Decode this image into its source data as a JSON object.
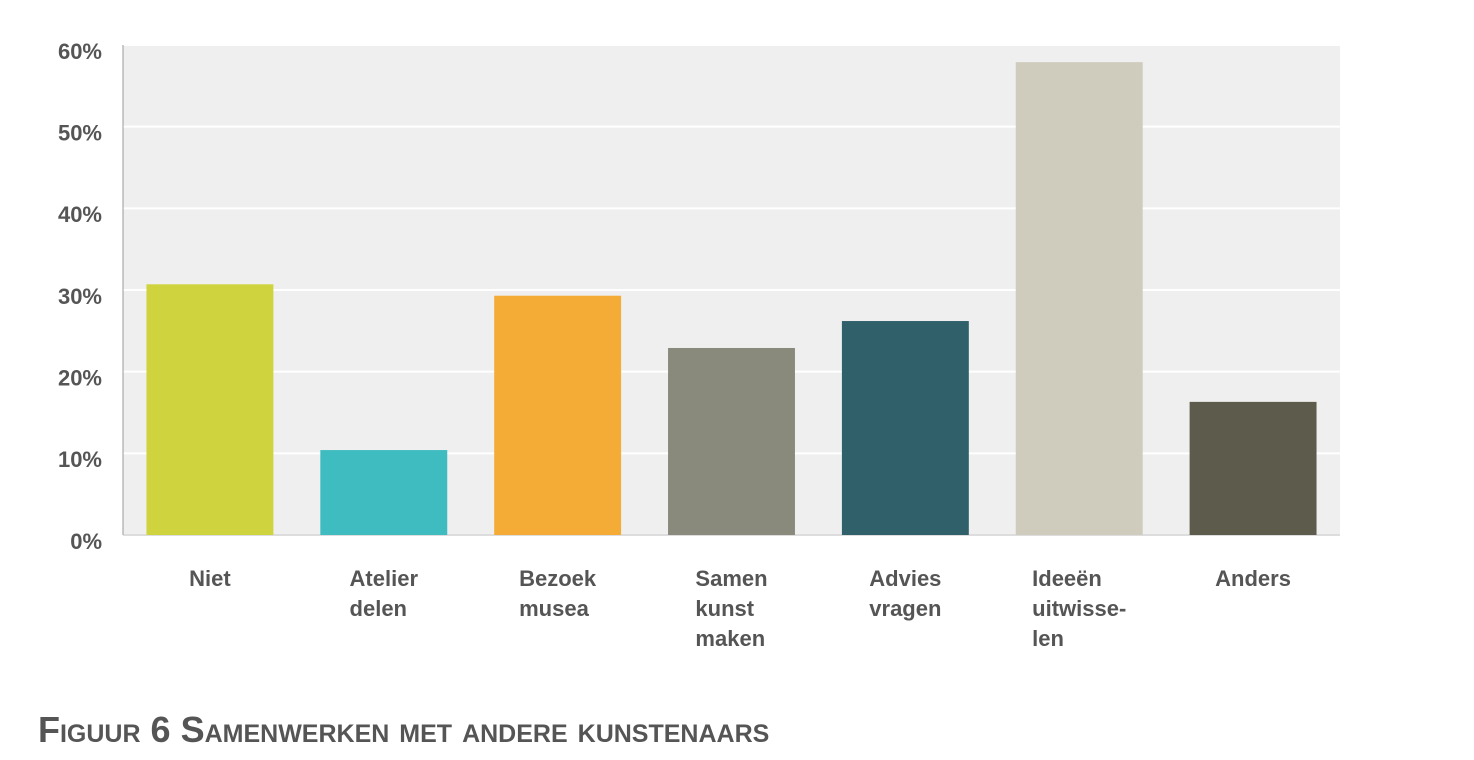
{
  "chart_data": {
    "type": "bar",
    "title": "Figuur 6 Samenwerken met andere kunstenaars",
    "categories": [
      [
        "Niet"
      ],
      [
        "Atelier",
        "delen"
      ],
      [
        "Bezoek",
        "musea"
      ],
      [
        "Samen",
        "kunst",
        "maken"
      ],
      [
        "Advies",
        "vragen"
      ],
      [
        "Ideeën",
        "uitwisse-",
        "len"
      ],
      [
        "Anders"
      ]
    ],
    "values": [
      30.7,
      10.4,
      29.3,
      22.9,
      26.2,
      57.9,
      16.3
    ],
    "colors": [
      "#cfd33e",
      "#3fbcc0",
      "#f4ac36",
      "#8a8a7c",
      "#30616b",
      "#cfccbd",
      "#5d5b4c"
    ],
    "ylim": [
      0,
      60
    ],
    "yticks": [
      {
        "value": 0,
        "label": "0%"
      },
      {
        "value": 10,
        "label": "10%"
      },
      {
        "value": 20,
        "label": "20%"
      },
      {
        "value": 30,
        "label": "30%"
      },
      {
        "value": 40,
        "label": "40%"
      },
      {
        "value": 50,
        "label": "50%"
      },
      {
        "value": 60,
        "label": "60%"
      }
    ],
    "grid": true
  }
}
